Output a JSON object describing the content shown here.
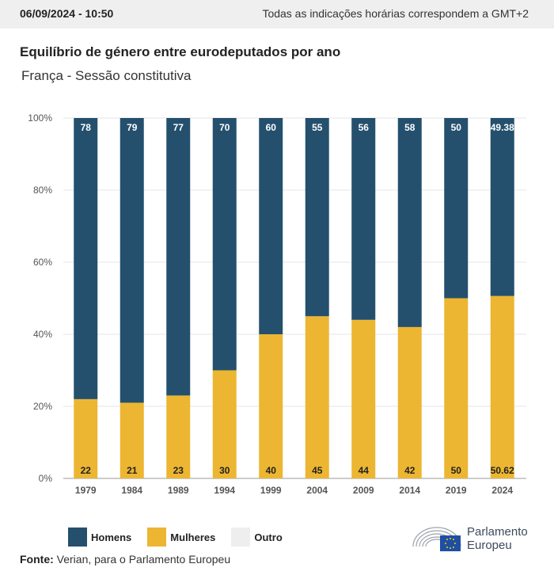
{
  "header": {
    "datetime": "06/09/2024 - 10:50",
    "timezone_note": "Todas as indicações horárias correspondem a GMT+2"
  },
  "title": "Equilíbrio de género entre eurodeputados por ano",
  "subtitle": "França - Sessão constitutiva",
  "colors": {
    "homens": "#24506e",
    "mulheres": "#ecb632",
    "outro": "#eeeeee",
    "grid": "#e6e6e6",
    "axis_text": "#555555"
  },
  "chart_data": {
    "type": "bar",
    "stacked": true,
    "percent": true,
    "categories": [
      "1979",
      "1984",
      "1989",
      "1994",
      "1999",
      "2004",
      "2009",
      "2014",
      "2019",
      "2024"
    ],
    "series": [
      {
        "name": "Mulheres",
        "values": [
          22,
          21,
          23,
          30,
          40,
          45,
          44,
          42,
          50,
          50.62
        ],
        "labels": [
          "22",
          "21",
          "23",
          "30",
          "40",
          "45",
          "44",
          "42",
          "50",
          "50.62"
        ]
      },
      {
        "name": "Homens",
        "values": [
          78,
          79,
          77,
          70,
          60,
          55,
          56,
          58,
          50,
          49.38
        ],
        "labels": [
          "78",
          "79",
          "77",
          "70",
          "60",
          "55",
          "56",
          "58",
          "50",
          "49.38"
        ]
      }
    ],
    "ylim": [
      0,
      100
    ],
    "yticks": [
      "0%",
      "20%",
      "40%",
      "60%",
      "80%",
      "100%"
    ],
    "ytick_values": [
      0,
      20,
      40,
      60,
      80,
      100
    ],
    "grid": true
  },
  "legend": [
    {
      "label": "Homens",
      "color": "#24506e"
    },
    {
      "label": "Mulheres",
      "color": "#ecb632"
    },
    {
      "label": "Outro",
      "color": "#eeeeee"
    }
  ],
  "source": {
    "label": "Fonte:",
    "text": "Verian, para o Parlamento Europeu"
  },
  "logo": {
    "line1": "Parlamento",
    "line2": "Europeu"
  }
}
